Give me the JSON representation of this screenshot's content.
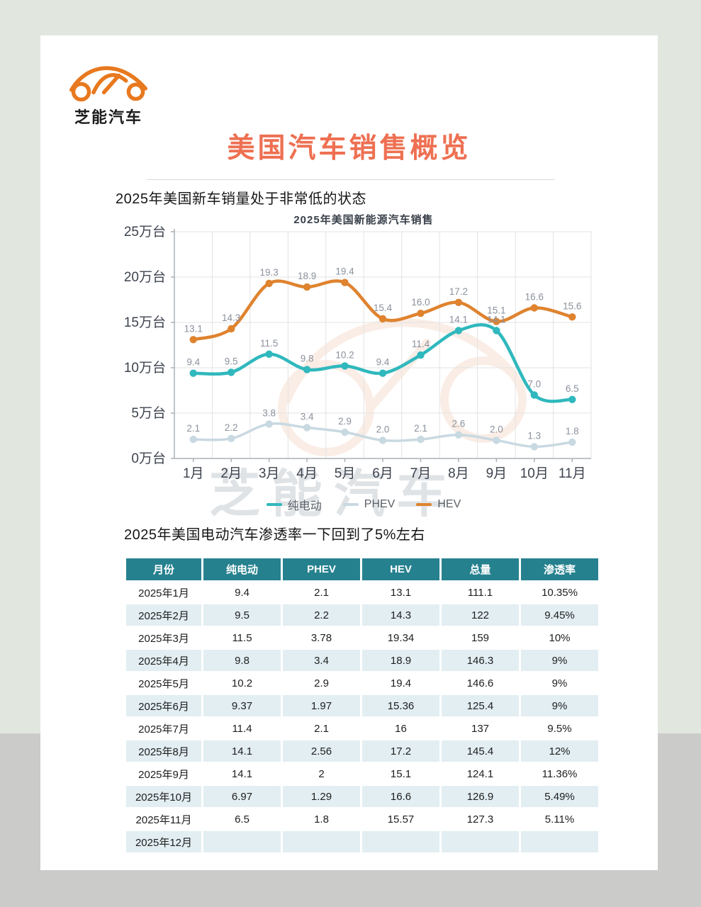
{
  "background": {
    "top_color": "#e1e7df",
    "bottom_color": "#cbccca"
  },
  "logo": {
    "text": "芝能汽车",
    "color": "#e8791f"
  },
  "header": {
    "title": "美国汽车销售概览",
    "title_color": "#ee7052"
  },
  "sections": {
    "chart_heading": "2025年美国新车销量处于非常低的状态",
    "table_heading": "2025年美国电动汽车渗透率一下回到了5%左右"
  },
  "watermark": {
    "text": "芝能汽车"
  },
  "chart_data": {
    "type": "line",
    "title": "2025年美国新能源汽车销售",
    "categories": [
      "1月",
      "2月",
      "3月",
      "4月",
      "5月",
      "6月",
      "7月",
      "8月",
      "9月",
      "10月",
      "11月"
    ],
    "y_axis": {
      "ticks": [
        0,
        5,
        10,
        15,
        20,
        25
      ],
      "suffix": "万台",
      "min": 0,
      "max": 25
    },
    "grid": true,
    "legend_position": "bottom",
    "series": [
      {
        "name": "纯电动",
        "color": "#2fb8bd",
        "line_width": 4.5,
        "values": [
          9.4,
          9.5,
          11.5,
          9.8,
          10.2,
          9.4,
          11.4,
          14.1,
          14.1,
          7.0,
          6.5
        ],
        "labels": [
          "9.4",
          "9.5",
          "11.5",
          "9.8",
          "10.2",
          "9.4",
          "11.4",
          "14.1",
          "14.1",
          "7.0",
          "6.5"
        ]
      },
      {
        "name": "PHEV",
        "color": "#c8d9e1",
        "line_width": 3.5,
        "values": [
          2.1,
          2.2,
          3.8,
          3.4,
          2.9,
          2.0,
          2.1,
          2.6,
          2.0,
          1.3,
          1.8
        ],
        "labels": [
          "2.1",
          "2.2",
          "3.8",
          "3.4",
          "2.9",
          "2.0",
          "2.1",
          "2.6",
          "2.0",
          "1.3",
          "1.8"
        ]
      },
      {
        "name": "HEV",
        "color": "#df832f",
        "line_width": 4.5,
        "values": [
          13.1,
          14.3,
          19.3,
          18.9,
          19.4,
          15.4,
          16.0,
          17.2,
          15.1,
          16.6,
          15.6
        ],
        "labels": [
          "13.1",
          "14.3",
          "19.3",
          "18.9",
          "19.4",
          "15.4",
          "16.0",
          "17.2",
          "15.1",
          "16.6",
          "15.6"
        ]
      }
    ]
  },
  "table": {
    "header_bg": "#26818f",
    "alt_row_bg": "#e2eef2",
    "headers": [
      "月份",
      "纯电动",
      "PHEV",
      "HEV",
      "总量",
      "渗透率"
    ],
    "rows": [
      [
        "2025年1月",
        "9.4",
        "2.1",
        "13.1",
        "111.1",
        "10.35%"
      ],
      [
        "2025年2月",
        "9.5",
        "2.2",
        "14.3",
        "122",
        "9.45%"
      ],
      [
        "2025年3月",
        "11.5",
        "3.78",
        "19.34",
        "159",
        "10%"
      ],
      [
        "2025年4月",
        "9.8",
        "3.4",
        "18.9",
        "146.3",
        "9%"
      ],
      [
        "2025年5月",
        "10.2",
        "2.9",
        "19.4",
        "146.6",
        "9%"
      ],
      [
        "2025年6月",
        "9.37",
        "1.97",
        "15.36",
        "125.4",
        "9%"
      ],
      [
        "2025年7月",
        "11.4",
        "2.1",
        "16",
        "137",
        "9.5%"
      ],
      [
        "2025年8月",
        "14.1",
        "2.56",
        "17.2",
        "145.4",
        "12%"
      ],
      [
        "2025年9月",
        "14.1",
        "2",
        "15.1",
        "124.1",
        "11.36%"
      ],
      [
        "2025年10月",
        "6.97",
        "1.29",
        "16.6",
        "126.9",
        "5.49%"
      ],
      [
        "2025年11月",
        "6.5",
        "1.8",
        "15.57",
        "127.3",
        "5.11%"
      ],
      [
        "2025年12月",
        "",
        "",
        "",
        "",
        ""
      ]
    ]
  }
}
